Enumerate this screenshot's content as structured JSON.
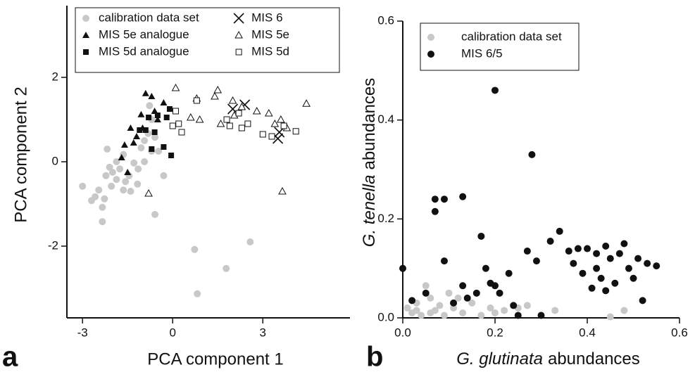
{
  "chart_data": [
    {
      "type": "scatter",
      "panel_label": "a",
      "xlabel": "PCA component 1",
      "ylabel": "PCA component 2",
      "xlim": [
        -3.52,
        5.9
      ],
      "ylim": [
        -3.7,
        3.7
      ],
      "xticks": [
        -3,
        0,
        3
      ],
      "yticks": [
        2,
        0,
        -2
      ],
      "legend": "upper left",
      "legend_columns": 2,
      "series": [
        {
          "name": "calibration data set",
          "color": "#c8c8c8",
          "marker": "circle",
          "filled": true,
          "x": [
            -3,
            -2.7,
            -2.58,
            -2.46,
            -2.34,
            -2.34,
            -2.22,
            -2.18,
            -2.1,
            -2,
            -1.87,
            -1.76,
            -1.64,
            -1.57,
            -1.45,
            -1.29,
            -1.17,
            -1.05,
            -0.94,
            -0.82,
            -0.7,
            -0.59,
            -0.77,
            -0.47,
            -0.3,
            -0.59,
            -1.87,
            -2.04,
            -2.27,
            -1.64,
            -1.4,
            0.73,
            0.82,
            1.78,
            2.58,
            -1.15,
            -0.94,
            -0.7
          ],
          "values": [
            -0.58,
            -0.92,
            -0.83,
            -0.67,
            -1.08,
            -1.42,
            -0.33,
            0.3,
            -0.13,
            -0.25,
            -0.42,
            -0.17,
            0.17,
            -0.47,
            -0.33,
            -0.03,
            -0.53,
            0.33,
            0.5,
            0.67,
            1.0,
            0.58,
            1.33,
            0.25,
            -0.33,
            -1.25,
            0,
            -0.58,
            -0.88,
            -0.67,
            -0.7,
            -2.08,
            -3.13,
            -2.53,
            -1.9,
            -0.17,
            0,
            0.25
          ]
        },
        {
          "name": "MIS 5e analogue",
          "color": "#111111",
          "marker": "triangle",
          "filled": true,
          "x": [
            -1.05,
            -0.9,
            -0.7,
            -1.4,
            -1.6,
            -1.3,
            -1.0,
            -0.6,
            -0.5,
            -1.7,
            -1.5,
            -0.3,
            -1.2
          ],
          "values": [
            1.12,
            1.62,
            1.55,
            0.8,
            0.4,
            0.45,
            0.8,
            1.2,
            1.0,
            0.1,
            -0.25,
            1.4,
            0.6
          ]
        },
        {
          "name": "MIS 5d analogue",
          "color": "#111111",
          "marker": "square",
          "filled": true,
          "x": [
            -0.1,
            -0.6,
            -0.3,
            -0.7,
            -0.05,
            -0.9,
            -0.8,
            -0.5,
            -1.1,
            -0.2
          ],
          "values": [
            1.25,
            0.7,
            0.35,
            0.3,
            0.15,
            0.75,
            1.05,
            1.1,
            0.75,
            1.05
          ]
        },
        {
          "name": "MIS 6",
          "color": "#111111",
          "marker": "x",
          "filled": false,
          "x": [
            2.0,
            2.4,
            3.5,
            3.55
          ],
          "values": [
            1.25,
            1.35,
            0.55,
            0.7
          ]
        },
        {
          "name": "MIS 5e",
          "color": "#111111",
          "marker": "triangle",
          "filled": false,
          "x": [
            0.1,
            0.8,
            0.9,
            1.5,
            2.0,
            2.3,
            2.8,
            3.2,
            3.6,
            3.8,
            4.45,
            3.65,
            1.6,
            2.05,
            3.4,
            0.6,
            -0.8,
            1.4
          ],
          "values": [
            1.75,
            1.5,
            1.0,
            1.7,
            1.45,
            1.3,
            1.2,
            1.15,
            1.0,
            0.8,
            1.38,
            -0.7,
            0.9,
            1.1,
            0.9,
            1.05,
            -0.75,
            1.55
          ]
        },
        {
          "name": "MIS 5d",
          "color": "#111111",
          "marker": "square",
          "filled": false,
          "x": [
            0.0,
            0.2,
            0.3,
            0.8,
            1.8,
            2.2,
            2.5,
            3.0,
            3.3,
            3.7,
            4.1,
            2.3,
            1.9,
            0.1
          ],
          "values": [
            0.85,
            0.9,
            0.7,
            1.45,
            1.0,
            1.15,
            0.9,
            0.65,
            0.6,
            0.85,
            0.72,
            0.8,
            0.85,
            1.2
          ]
        }
      ]
    },
    {
      "type": "scatter",
      "panel_label": "b",
      "xlabel": {
        "italic": "G. glutinata",
        "text": "abundances"
      },
      "ylabel": {
        "italic": "G. tenella",
        "text": "abundances"
      },
      "xlim": [
        0,
        0.6
      ],
      "ylim": [
        0,
        0.6
      ],
      "xticks": [
        {
          "value": 0,
          "label": "0.0"
        },
        {
          "value": 0.2,
          "label": "0.2"
        },
        {
          "value": 0.4,
          "label": "0.4"
        },
        {
          "value": 0.6,
          "label": "0.6"
        }
      ],
      "yticks": [
        {
          "value": 0,
          "label": "0.0"
        },
        {
          "value": 0.2,
          "label": "0.2"
        },
        {
          "value": 0.4,
          "label": "0.4"
        },
        {
          "value": 0.6,
          "label": "0.6"
        }
      ],
      "legend": "upper left",
      "legend_columns": 1,
      "series": [
        {
          "name": "calibration data set",
          "color": "#c8c8c8",
          "marker": "circle",
          "filled": true,
          "x": [
            0.01,
            0.02,
            0.03,
            0.04,
            0.05,
            0.06,
            0.07,
            0.08,
            0.09,
            0.1,
            0.11,
            0.13,
            0.15,
            0.17,
            0.19,
            0.2,
            0.22,
            0.25,
            0.27,
            0.33,
            0.45,
            0.48,
            0.03,
            0.06,
            0.12
          ],
          "values": [
            0.02,
            0.01,
            0.03,
            0.005,
            0.065,
            0.04,
            0.015,
            0.025,
            0.005,
            0.05,
            0.02,
            0.01,
            0.03,
            0.005,
            0.02,
            0.01,
            0.015,
            0.02,
            0.025,
            0.015,
            0.002,
            0.015,
            0.015,
            0.01,
            0.04
          ]
        },
        {
          "name": "MIS 6/5",
          "color": "#111111",
          "marker": "circle",
          "filled": true,
          "x": [
            0.0,
            0.02,
            0.05,
            0.07,
            0.07,
            0.09,
            0.09,
            0.11,
            0.13,
            0.13,
            0.14,
            0.17,
            0.2,
            0.18,
            0.19,
            0.2,
            0.21,
            0.23,
            0.24,
            0.28,
            0.27,
            0.29,
            0.32,
            0.34,
            0.36,
            0.37,
            0.38,
            0.39,
            0.4,
            0.41,
            0.42,
            0.42,
            0.43,
            0.44,
            0.45,
            0.46,
            0.47,
            0.48,
            0.49,
            0.5,
            0.51,
            0.52,
            0.53,
            0.55,
            0.25,
            0.3,
            0.16,
            0.44
          ],
          "values": [
            0.1,
            0.035,
            0.05,
            0.24,
            0.215,
            0.24,
            0.115,
            0.03,
            0.245,
            0.065,
            0.04,
            0.165,
            0.46,
            0.1,
            0.07,
            0.065,
            0.05,
            0.09,
            0.025,
            0.33,
            0.135,
            0.115,
            0.155,
            0.175,
            0.135,
            0.11,
            0.14,
            0.09,
            0.14,
            0.06,
            0.13,
            0.1,
            0.08,
            0.145,
            0.12,
            0.07,
            0.13,
            0.15,
            0.1,
            0.08,
            0.12,
            0.035,
            0.11,
            0.105,
            0.005,
            0.005,
            0.05,
            0.055
          ]
        }
      ]
    }
  ]
}
